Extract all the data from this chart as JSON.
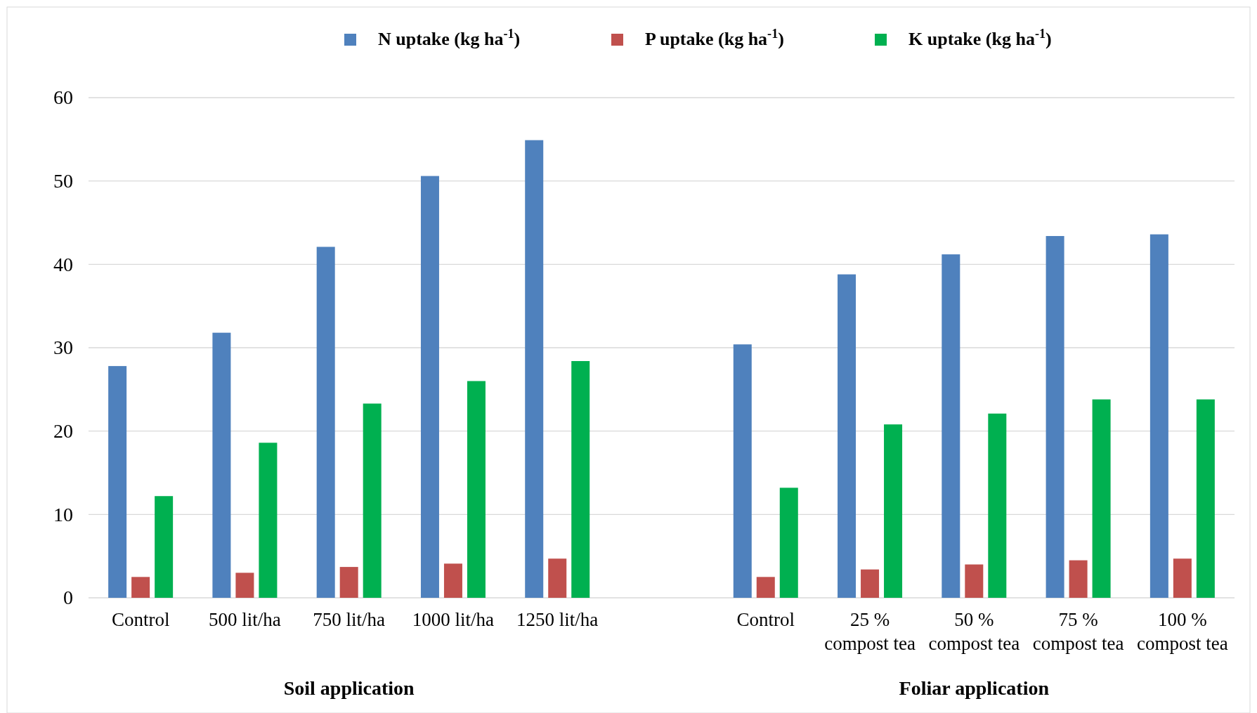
{
  "chart_data": {
    "type": "bar",
    "categories": [
      "Control",
      "500 lit/ha",
      "750 lit/ha",
      "1000 lit/ha",
      "1250 lit/ha",
      null,
      "Control",
      "25 %\ncompost tea",
      "50 %\ncompost tea",
      "75 %\ncompost tea",
      "100 %\ncompost tea"
    ],
    "series": [
      {
        "name": "N uptake (kg ha$^{-1}$)",
        "color": "#4f81bd",
        "values": [
          27.8,
          31.8,
          42.1,
          50.6,
          54.9,
          null,
          30.4,
          38.8,
          41.2,
          43.4,
          43.6
        ]
      },
      {
        "name": "P uptake (kg ha$^{-1}$)",
        "color": "#c0504d",
        "values": [
          2.5,
          3.0,
          3.7,
          4.1,
          4.7,
          null,
          2.5,
          3.4,
          4.0,
          4.5,
          4.7
        ]
      },
      {
        "name": "K uptake (kg ha$^{-1}$)",
        "color": "#00b050",
        "values": [
          12.2,
          18.6,
          23.3,
          26.0,
          28.4,
          null,
          13.2,
          20.8,
          22.1,
          23.8,
          23.8
        ]
      }
    ],
    "ylim": [
      0,
      60
    ],
    "yticks": [
      0,
      10,
      20,
      30,
      40,
      50,
      60
    ],
    "grid": "y",
    "legend": "top",
    "annotations": [
      "Soil application",
      "Foliar application"
    ]
  }
}
